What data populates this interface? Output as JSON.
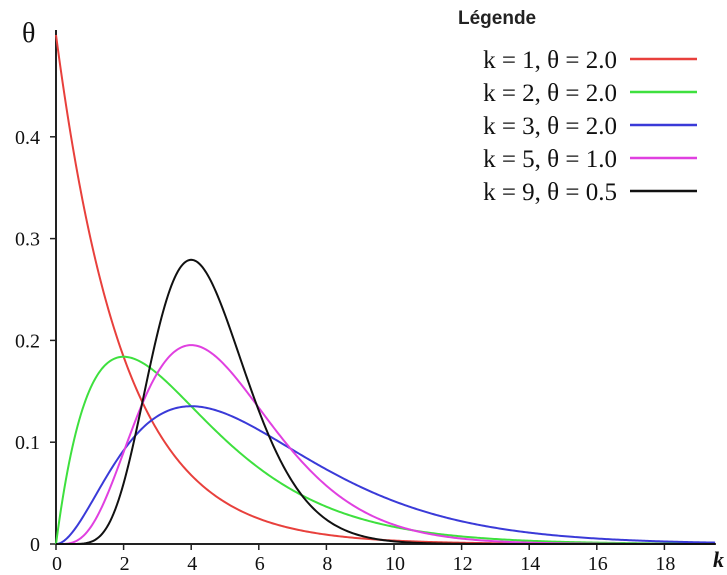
{
  "chart_data": {
    "type": "line",
    "ylabel": "θ",
    "xlabel": "k",
    "xlim": [
      0,
      19.5
    ],
    "ylim": [
      0,
      0.5
    ],
    "x_ticks": [
      "0",
      "2",
      "4",
      "6",
      "8",
      "10",
      "12",
      "14",
      "16",
      "18"
    ],
    "y_ticks": [
      "0",
      "0.1",
      "0.2",
      "0.3",
      "0.4"
    ],
    "grid": false,
    "legend": {
      "title": "Légende",
      "placement": "top-right"
    },
    "series": [
      {
        "name": "k = 1, θ = 2.0",
        "shape": 1,
        "scale": 2.0,
        "color": "#e8403c",
        "x": [
          0,
          1,
          2,
          3,
          4,
          6,
          8,
          10,
          12,
          14
        ],
        "values": [
          0.5,
          0.303,
          0.184,
          0.112,
          0.068,
          0.025,
          0.009,
          0.003,
          0.001,
          0.0
        ]
      },
      {
        "name": "k = 2, θ = 2.0",
        "shape": 2,
        "scale": 2.0,
        "color": "#3ee03e",
        "x": [
          0,
          1,
          2,
          3,
          4,
          6,
          8,
          10,
          12,
          14
        ],
        "values": [
          0,
          0.152,
          0.184,
          0.167,
          0.135,
          0.075,
          0.037,
          0.017,
          0.007,
          0.003
        ]
      },
      {
        "name": "k = 3, θ = 2.0",
        "shape": 3,
        "scale": 2.0,
        "color": "#3a3ad8",
        "x": [
          0,
          2,
          4,
          6,
          8,
          10,
          12,
          14,
          16,
          18
        ],
        "values": [
          0,
          0.092,
          0.135,
          0.112,
          0.073,
          0.042,
          0.022,
          0.011,
          0.005,
          0.002
        ]
      },
      {
        "name": "k = 5, θ = 1.0",
        "shape": 5,
        "scale": 1.0,
        "color": "#e040e0",
        "x": [
          0,
          2,
          3,
          4,
          5,
          6,
          8,
          10,
          12
        ],
        "values": [
          0,
          0.09,
          0.168,
          0.195,
          0.175,
          0.134,
          0.057,
          0.019,
          0.005
        ]
      },
      {
        "name": "k = 9, θ = 0.5",
        "shape": 9,
        "scale": 0.5,
        "color": "#111111",
        "x": [
          0,
          2,
          3,
          4,
          5,
          6,
          8,
          10
        ],
        "values": [
          0,
          0.036,
          0.179,
          0.279,
          0.229,
          0.128,
          0.016,
          0.001
        ]
      }
    ]
  }
}
